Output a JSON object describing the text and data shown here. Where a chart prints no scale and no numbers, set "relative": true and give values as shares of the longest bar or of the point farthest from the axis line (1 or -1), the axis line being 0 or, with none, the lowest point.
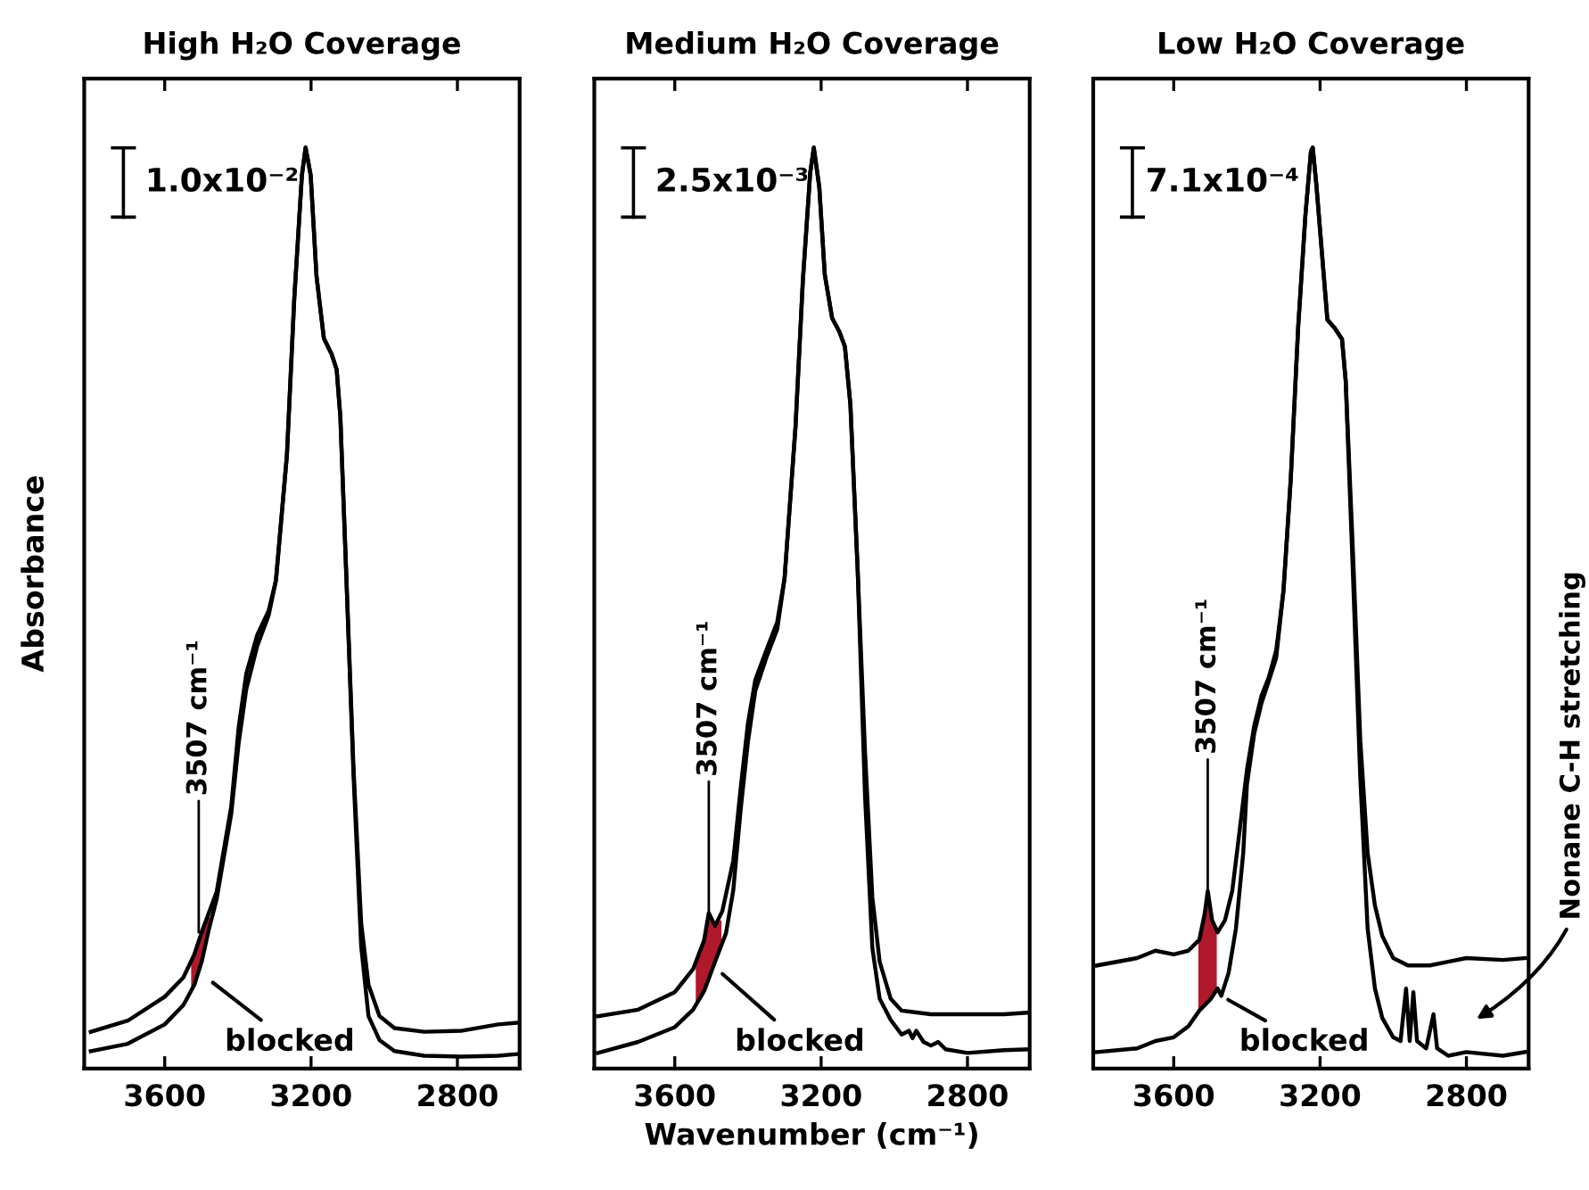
{
  "chart_data": [
    {
      "type": "line",
      "title": "High H₂O Coverage",
      "ylabel": "Absorbance",
      "relative": true,
      "xlim": [
        3820,
        2630
      ],
      "xticks": [
        3600,
        3200,
        2800
      ],
      "tick_labels": "x",
      "series": [
        {
          "color": "#000000",
          "x": [
            3802,
            3701,
            3600,
            3549,
            3519,
            3499,
            3458,
            3418,
            3398,
            3377,
            3347,
            3316,
            3296,
            3266,
            3246,
            3225,
            3215,
            3201,
            3185,
            3165,
            3144,
            3130,
            3120,
            3104,
            3084,
            3063,
            3043,
            3013,
            2972,
            2891,
            2790,
            2689,
            2630
          ],
          "values": [
            0.04,
            0.052,
            0.078,
            0.099,
            0.124,
            0.148,
            0.192,
            0.285,
            0.37,
            0.429,
            0.471,
            0.497,
            0.53,
            0.666,
            0.835,
            0.97,
            1.0,
            0.97,
            0.86,
            0.793,
            0.776,
            0.759,
            0.708,
            0.539,
            0.327,
            0.158,
            0.091,
            0.057,
            0.044,
            0.04,
            0.041,
            0.048,
            0.05
          ]
        },
        {
          "color": "#000000",
          "x": [
            3802,
            3701,
            3600,
            3549,
            3519,
            3499,
            3480,
            3458,
            3418,
            3398,
            3377,
            3347,
            3316,
            3296,
            3266,
            3246,
            3225,
            3215,
            3201,
            3185,
            3165,
            3144,
            3130,
            3120,
            3104,
            3084,
            3063,
            3043,
            3013,
            2972,
            2891,
            2790,
            2689,
            2630
          ],
          "values": [
            0.019,
            0.027,
            0.048,
            0.069,
            0.091,
            0.116,
            0.15,
            0.184,
            0.277,
            0.353,
            0.412,
            0.459,
            0.492,
            0.53,
            0.666,
            0.835,
            0.97,
            1.0,
            0.97,
            0.86,
            0.793,
            0.776,
            0.759,
            0.708,
            0.539,
            0.319,
            0.133,
            0.057,
            0.031,
            0.019,
            0.014,
            0.013,
            0.014,
            0.016
          ]
        },
        {
          "type": "area",
          "color": "#b0182c",
          "x": [
            3525,
            3500,
            3480
          ],
          "values": [
            0.12,
            0.148,
            0.17
          ]
        }
      ],
      "annotations": [
        "1.0x10⁻²",
        {
          "text": "3507 cm⁻¹",
          "x": 3507,
          "y": 0.148
        },
        {
          "text": "blocked",
          "x": 3490,
          "y": 0.1
        }
      ]
    },
    {
      "type": "line",
      "title": "Medium H₂O Coverage",
      "xlabel": "Wavenumber (cm⁻¹)",
      "relative": true,
      "xlim": [
        3820,
        2630
      ],
      "xticks": [
        3600,
        3200,
        2800
      ],
      "tick_labels": "x",
      "series": [
        {
          "color": "#000000",
          "x": [
            3810,
            3700,
            3600,
            3550,
            3520,
            3507,
            3490,
            3470,
            3440,
            3420,
            3400,
            3380,
            3350,
            3320,
            3300,
            3270,
            3250,
            3230,
            3220,
            3205,
            3190,
            3170,
            3150,
            3135,
            3120,
            3100,
            3080,
            3060,
            3040,
            3010,
            2980,
            2900,
            2800,
            2700,
            2630
          ],
          "values": [
            0.057,
            0.064,
            0.083,
            0.108,
            0.139,
            0.169,
            0.155,
            0.171,
            0.226,
            0.304,
            0.375,
            0.422,
            0.454,
            0.485,
            0.532,
            0.697,
            0.855,
            0.972,
            1.0,
            0.957,
            0.862,
            0.815,
            0.8,
            0.784,
            0.721,
            0.54,
            0.344,
            0.186,
            0.116,
            0.076,
            0.063,
            0.059,
            0.059,
            0.059,
            0.061
          ]
        },
        {
          "color": "#000000",
          "x": [
            3810,
            3700,
            3600,
            3550,
            3520,
            3490,
            3460,
            3440,
            3420,
            3400,
            3380,
            3350,
            3320,
            3300,
            3270,
            3250,
            3230,
            3220,
            3205,
            3190,
            3170,
            3150,
            3135,
            3120,
            3100,
            3080,
            3060,
            3040,
            3010,
            2980,
            2960,
            2950,
            2940,
            2920,
            2900,
            2880,
            2860,
            2800,
            2700,
            2630
          ],
          "values": [
            0.017,
            0.029,
            0.045,
            0.064,
            0.084,
            0.116,
            0.147,
            0.194,
            0.281,
            0.355,
            0.41,
            0.446,
            0.477,
            0.532,
            0.697,
            0.855,
            0.972,
            1.0,
            0.957,
            0.862,
            0.815,
            0.8,
            0.784,
            0.721,
            0.54,
            0.296,
            0.131,
            0.076,
            0.053,
            0.037,
            0.041,
            0.033,
            0.041,
            0.029,
            0.025,
            0.029,
            0.021,
            0.017,
            0.02,
            0.021
          ]
        },
        {
          "type": "area",
          "color": "#b0182c",
          "x": [
            3540,
            3520,
            3507,
            3490,
            3475
          ],
          "values": [
            0.115,
            0.139,
            0.169,
            0.155,
            0.16
          ]
        }
      ],
      "annotations": [
        "2.5x10⁻³",
        {
          "text": "3507 cm⁻¹",
          "x": 3507,
          "y": 0.169
        },
        {
          "text": "blocked",
          "x": 3490,
          "y": 0.11
        }
      ]
    },
    {
      "type": "line",
      "title": "Low H₂O Coverage",
      "relative": true,
      "xlim": [
        3820,
        2630
      ],
      "xticks": [
        3600,
        3200,
        2800
      ],
      "tick_labels": "x",
      "series": [
        {
          "color": "#000000",
          "x": [
            3810,
            3700,
            3650,
            3600,
            3560,
            3530,
            3515,
            3507,
            3495,
            3480,
            3460,
            3440,
            3420,
            3400,
            3380,
            3360,
            3340,
            3320,
            3300,
            3280,
            3260,
            3240,
            3225,
            3220,
            3210,
            3195,
            3180,
            3160,
            3140,
            3130,
            3110,
            3090,
            3070,
            3050,
            3030,
            3000,
            2960,
            2900,
            2850,
            2800,
            2700,
            2640
          ],
          "values": [
            0.112,
            0.12,
            0.128,
            0.124,
            0.128,
            0.14,
            0.169,
            0.193,
            0.161,
            0.148,
            0.161,
            0.193,
            0.258,
            0.324,
            0.372,
            0.405,
            0.425,
            0.454,
            0.519,
            0.641,
            0.804,
            0.927,
            0.996,
            1.0,
            0.959,
            0.886,
            0.813,
            0.804,
            0.792,
            0.747,
            0.56,
            0.356,
            0.234,
            0.177,
            0.144,
            0.12,
            0.112,
            0.112,
            0.116,
            0.12,
            0.118,
            0.12
          ]
        },
        {
          "color": "#000000",
          "x": [
            3810,
            3700,
            3650,
            3600,
            3560,
            3530,
            3500,
            3480,
            3470,
            3450,
            3430,
            3410,
            3400,
            3380,
            3360,
            3340,
            3320,
            3300,
            3280,
            3260,
            3240,
            3225,
            3220,
            3210,
            3195,
            3180,
            3160,
            3140,
            3130,
            3110,
            3090,
            3070,
            3050,
            3030,
            3000,
            2980,
            2965,
            2955,
            2945,
            2935,
            2910,
            2890,
            2880,
            2850,
            2800,
            2700,
            2640
          ],
          "values": [
            0.018,
            0.022,
            0.03,
            0.034,
            0.046,
            0.063,
            0.075,
            0.087,
            0.079,
            0.104,
            0.152,
            0.234,
            0.308,
            0.364,
            0.397,
            0.421,
            0.446,
            0.519,
            0.641,
            0.804,
            0.927,
            0.996,
            1.0,
            0.959,
            0.886,
            0.813,
            0.804,
            0.792,
            0.747,
            0.535,
            0.315,
            0.152,
            0.087,
            0.055,
            0.034,
            0.03,
            0.087,
            0.03,
            0.083,
            0.03,
            0.022,
            0.059,
            0.022,
            0.014,
            0.018,
            0.014,
            0.018
          ]
        },
        {
          "type": "area",
          "color": "#b0182c",
          "x": [
            3530,
            3515,
            3507,
            3495,
            3485
          ],
          "values": [
            0.14,
            0.169,
            0.193,
            0.161,
            0.15
          ]
        }
      ],
      "annotations": [
        "7.1x10⁻⁴",
        {
          "text": "3507 cm⁻¹",
          "x": 3507,
          "y": 0.193
        },
        {
          "text": "blocked",
          "x": 3475,
          "y": 0.08
        },
        "Nonane C-H stretching"
      ]
    }
  ]
}
